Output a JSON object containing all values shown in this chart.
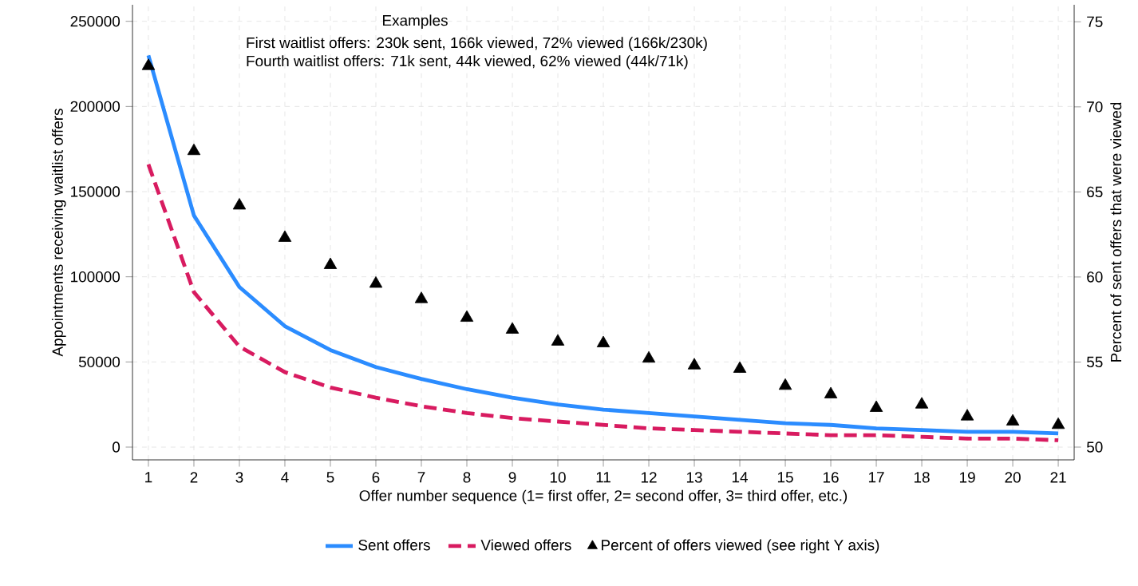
{
  "chart_data": {
    "type": "line",
    "xlabel": "Offer number sequence (1= first offer, 2= second offer, 3= third offer, etc.)",
    "ylabel": "Appointments receiving waitlist offers",
    "y2label": "Percent of sent offers that were viewed",
    "annotations": [
      "Examples",
      "First waitlist offers: 230k sent, 166k viewed, 72% viewed (166k/230k)",
      "Fourth waitlist offers: 71k sent,  44k viewed, 62% viewed (44k/71k)"
    ],
    "x": [
      1,
      2,
      3,
      4,
      5,
      6,
      7,
      8,
      9,
      10,
      11,
      12,
      13,
      14,
      15,
      16,
      17,
      18,
      19,
      20,
      21
    ],
    "xlim": [
      0.65,
      21.35
    ],
    "xticks": [
      1,
      2,
      3,
      4,
      5,
      6,
      7,
      8,
      9,
      10,
      11,
      12,
      13,
      14,
      15,
      16,
      17,
      18,
      19,
      20,
      21
    ],
    "ylim": [
      -7500,
      259700
    ],
    "yticks": [
      0,
      50000,
      100000,
      150000,
      200000,
      250000
    ],
    "y2lim": [
      49.25,
      76
    ],
    "y2ticks": [
      50,
      55,
      60,
      65,
      70,
      75
    ],
    "grid": true,
    "legend": "bottom",
    "series": [
      {
        "name": "Sent offers",
        "color": "#2b8cff",
        "line_style": "solid",
        "marker": "none",
        "values": [
          230000,
          136000,
          94000,
          71000,
          57000,
          47000,
          40000,
          34000,
          29000,
          25000,
          22000,
          20000,
          18000,
          16000,
          14000,
          13000,
          11000,
          10000,
          9000,
          9000,
          8000
        ]
      },
      {
        "name": "Viewed offers",
        "color": "#d81b60",
        "line_style": "dashed",
        "marker": "none",
        "values": [
          166000,
          91000,
          59000,
          44000,
          35000,
          29000,
          24000,
          20000,
          17000,
          15000,
          13000,
          11000,
          10000,
          9000,
          8000,
          7000,
          7000,
          6000,
          5000,
          5000,
          4000
        ]
      },
      {
        "name": "Percent of offers viewed (see right Y axis)",
        "type": "scatter",
        "axis": "y2",
        "color": "#000000",
        "marker": "triangle",
        "values": [
          72.4,
          67.4,
          64.2,
          62.3,
          60.7,
          59.6,
          58.7,
          57.6,
          56.9,
          56.2,
          56.1,
          55.2,
          54.8,
          54.6,
          53.6,
          53.1,
          52.3,
          52.5,
          51.8,
          51.5,
          51.3
        ]
      }
    ]
  }
}
